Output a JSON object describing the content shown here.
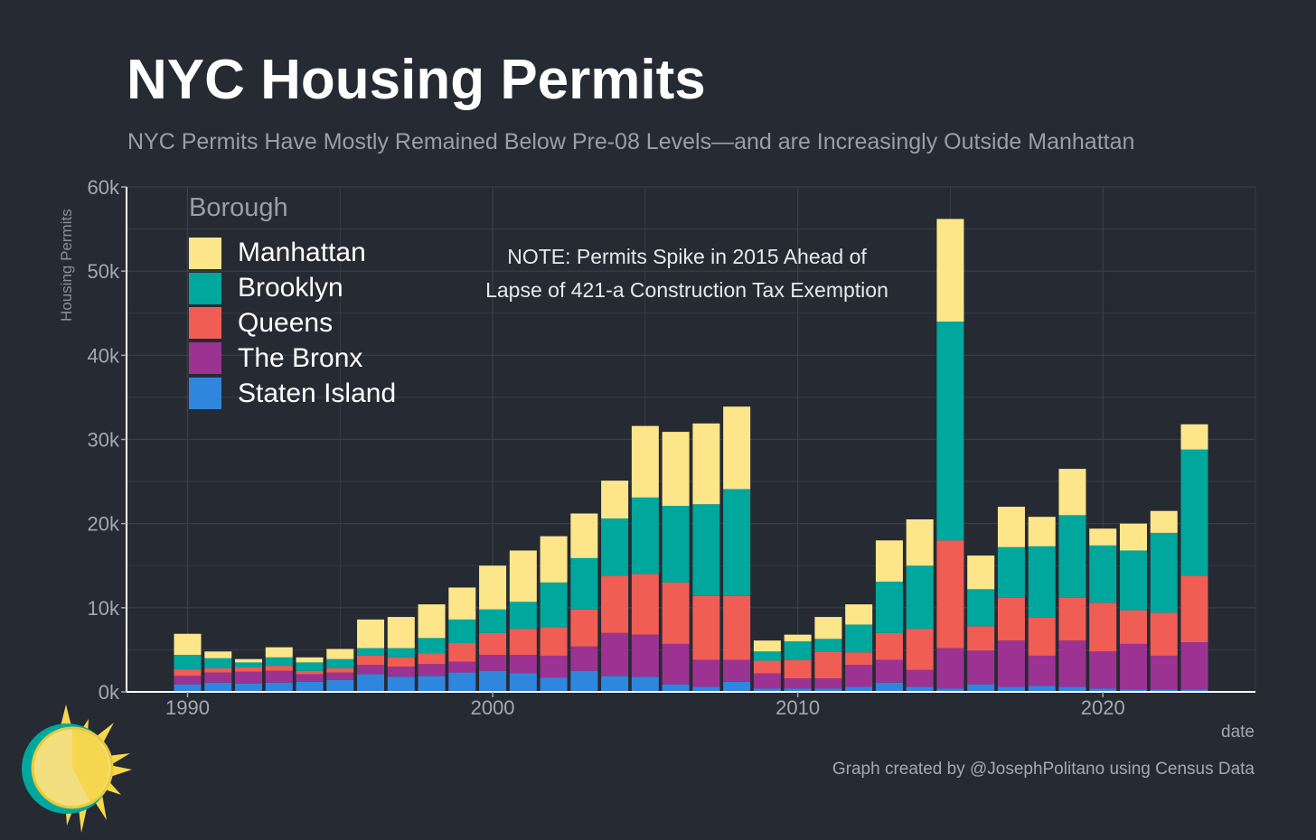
{
  "title": "NYC Housing Permits",
  "subtitle": "NYC Permits Have Mostly Remained Below Pre-08 Levels—and are Increasingly Outside Manhattan",
  "note_lines": [
    "NOTE: Permits Spike in 2015 Ahead of",
    "Lapse of 421-a Construction Tax Exemption"
  ],
  "caption": "Graph created by @JosephPolitano using Census Data",
  "logo_icon": "sun-logo-icon",
  "colors": {
    "background": "#262a33",
    "grid": "#3b3f48",
    "axis": "#ffffff",
    "tick_text": "#a4a8b0"
  },
  "chart_data": {
    "type": "bar",
    "stacked": true,
    "title": "NYC Housing Permits",
    "xlabel": "date",
    "ylabel": "Housing Permits",
    "ylim": [
      0,
      60000
    ],
    "xlim": [
      1988,
      2025
    ],
    "yticks": [
      0,
      10000,
      20000,
      30000,
      40000,
      50000,
      60000
    ],
    "ytick_labels": [
      "0k",
      "10k",
      "20k",
      "30k",
      "40k",
      "50k",
      "60k"
    ],
    "xticks": [
      1990,
      2000,
      2010,
      2020
    ],
    "xtick_labels": [
      "1990",
      "2000",
      "2010",
      "2020"
    ],
    "grid": true,
    "legend": {
      "title": "Borough",
      "position": "top-left"
    },
    "x": [
      1990,
      1991,
      1992,
      1993,
      1994,
      1995,
      1996,
      1997,
      1998,
      1999,
      2000,
      2001,
      2002,
      2003,
      2004,
      2005,
      2006,
      2007,
      2008,
      2009,
      2010,
      2011,
      2012,
      2013,
      2014,
      2015,
      2016,
      2017,
      2018,
      2019,
      2020,
      2021,
      2022,
      2023
    ],
    "series": [
      {
        "name": "Staten Island",
        "color": "#2f86dd",
        "values": [
          900,
          1100,
          1000,
          1100,
          1200,
          1400,
          2100,
          1800,
          1900,
          2300,
          2500,
          2200,
          1700,
          2500,
          1900,
          1800,
          900,
          600,
          1200,
          400,
          400,
          400,
          600,
          1100,
          600,
          400,
          900,
          600,
          700,
          600,
          400,
          300,
          300,
          300
        ]
      },
      {
        "name": "The Bronx",
        "color": "#9c3392",
        "values": [
          1000,
          1200,
          1400,
          1400,
          900,
          900,
          1100,
          1200,
          1400,
          1300,
          1900,
          2200,
          2600,
          2900,
          5100,
          5000,
          4800,
          3200,
          2600,
          1800,
          1200,
          1200,
          2600,
          2700,
          2000,
          4800,
          4000,
          5500,
          3600,
          5500,
          4400,
          5400,
          4000,
          5600
        ]
      },
      {
        "name": "Queens",
        "color": "#ef5d55",
        "values": [
          800,
          500,
          500,
          600,
          400,
          500,
          1100,
          1100,
          1300,
          2200,
          2600,
          3100,
          3400,
          4400,
          6800,
          7200,
          7300,
          7600,
          7600,
          1500,
          2200,
          3200,
          1500,
          3200,
          4900,
          12800,
          2900,
          5100,
          4500,
          5100,
          5800,
          4000,
          5100,
          7900
        ]
      },
      {
        "name": "Brooklyn",
        "color": "#00a79d",
        "values": [
          1700,
          1200,
          600,
          1000,
          1000,
          1100,
          900,
          1100,
          1800,
          2800,
          2800,
          3200,
          5300,
          6100,
          6800,
          9100,
          9100,
          10900,
          12700,
          1100,
          2200,
          1500,
          3300,
          6100,
          7500,
          26000,
          4400,
          6000,
          8500,
          9800,
          6800,
          7100,
          9500,
          15000
        ]
      },
      {
        "name": "Manhattan",
        "color": "#fde68a",
        "values": [
          2500,
          800,
          400,
          1200,
          600,
          1200,
          3400,
          3700,
          4000,
          3800,
          5200,
          6100,
          5500,
          5300,
          4500,
          8500,
          8800,
          9600,
          9800,
          1300,
          800,
          2600,
          2400,
          4900,
          5500,
          12200,
          4000,
          4800,
          3500,
          5500,
          2000,
          3200,
          2600,
          3000
        ]
      }
    ]
  }
}
